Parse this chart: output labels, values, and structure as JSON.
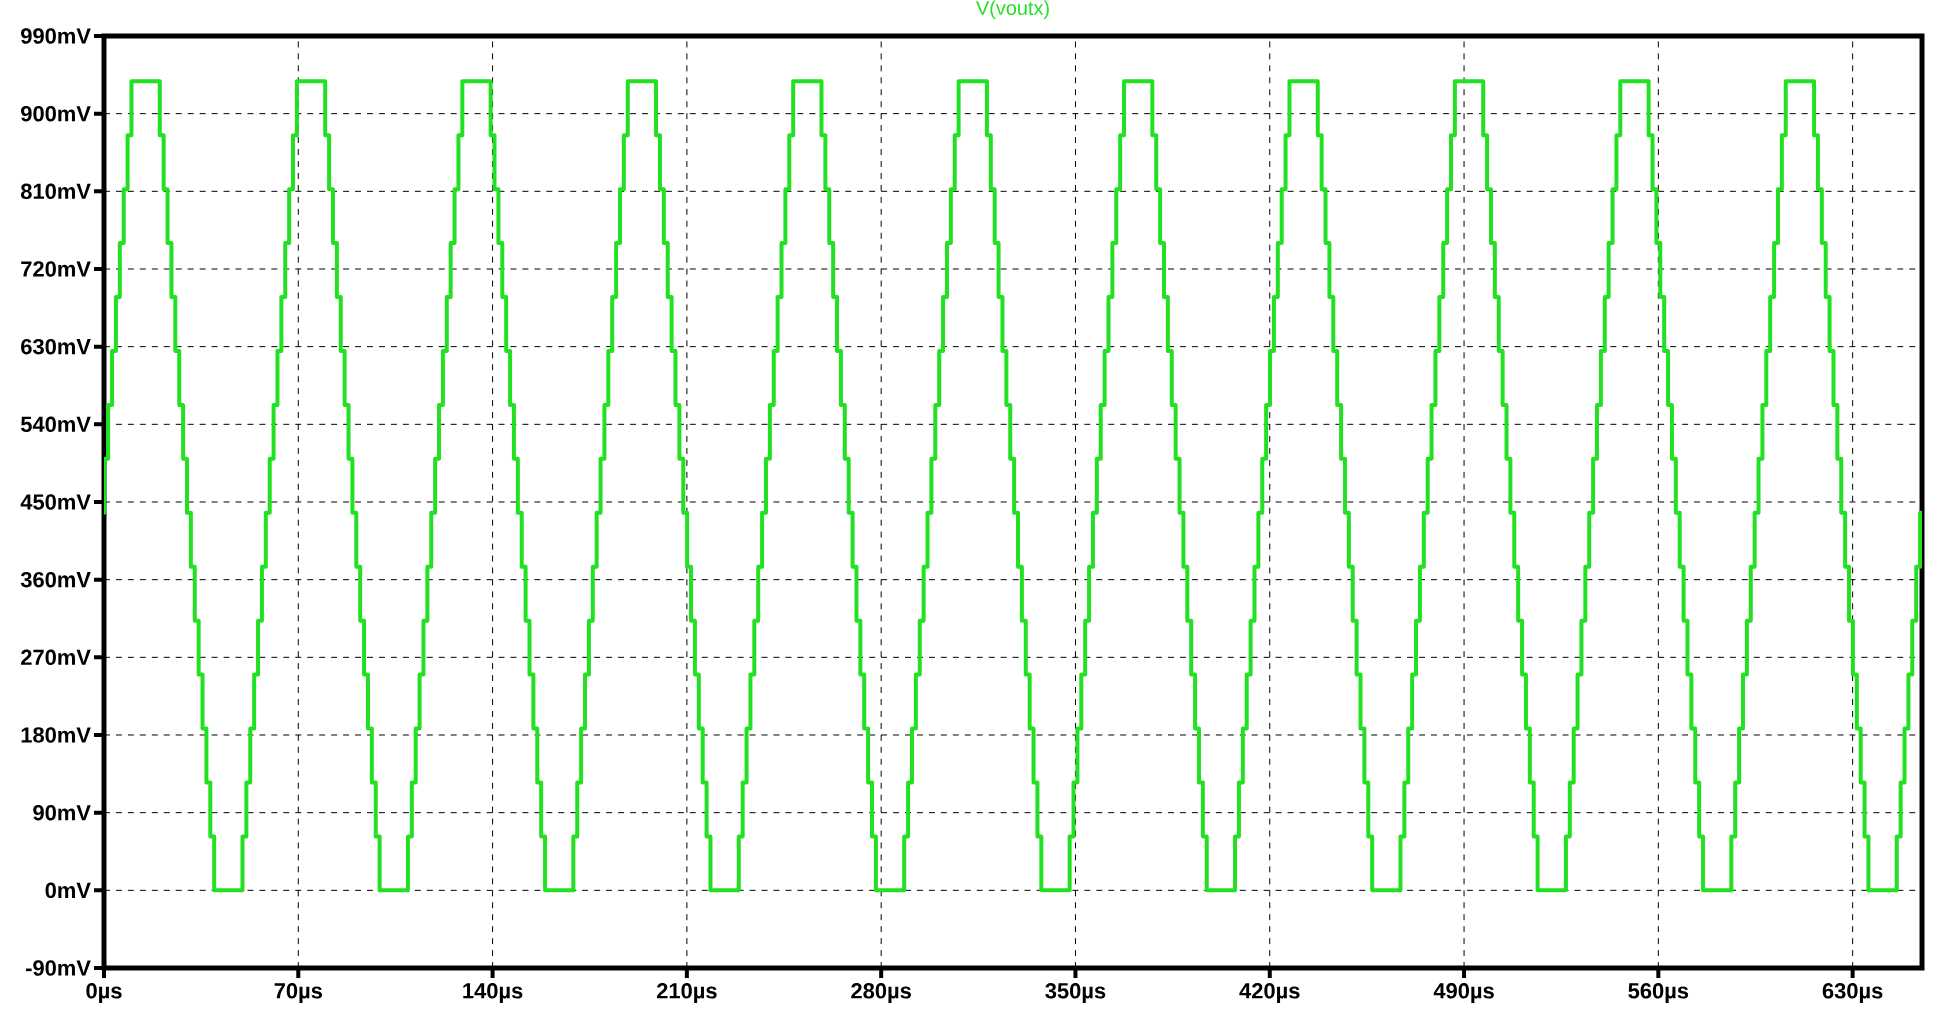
{
  "chart_data": {
    "type": "step",
    "title": "V(voutx)",
    "x": [
      0,
      0.1,
      1.5,
      2.9,
      4.3,
      5.7,
      7.1,
      8.5,
      9.9,
      20.1,
      21.5,
      22.9,
      24.3,
      25.7,
      27.1,
      28.5,
      29.9,
      31.3,
      32.7,
      34.1,
      35.5,
      36.9,
      38.3,
      39.7,
      49.9,
      51.3,
      52.7,
      54.1,
      55.5,
      56.9,
      58.3,
      59.7,
      61.1,
      62.5,
      63.9,
      65.3,
      66.7,
      68.1,
      69.5,
      79.7,
      81.1,
      82.5,
      83.9,
      85.3,
      86.7,
      88.1,
      89.5,
      90.9,
      92.3,
      93.7,
      95.1,
      96.5,
      97.9,
      99.3,
      109.5,
      110.9,
      112.3,
      113.7,
      115.1,
      116.5,
      117.9,
      119.3,
      120.7,
      122.1,
      123.5,
      124.9,
      126.3,
      127.7,
      129.1,
      139.3,
      140.7,
      142.1,
      143.5,
      144.9,
      146.3,
      147.7,
      149.1,
      150.5,
      151.9,
      153.3,
      154.7,
      156.1,
      157.5,
      158.9,
      169.1,
      170.5,
      171.9,
      173.3,
      174.7,
      176.1,
      177.5,
      178.9,
      180.3,
      181.7,
      183.1,
      184.5,
      185.9,
      187.3,
      188.7,
      198.9,
      200.3,
      201.7,
      203.1,
      204.5,
      205.9,
      207.3,
      208.7,
      210.1,
      211.5,
      212.9,
      214.3,
      215.7,
      217.1,
      218.5,
      228.7,
      230.1,
      231.5,
      232.9,
      234.3,
      235.7,
      237.1,
      238.5,
      239.9,
      241.3,
      242.7,
      244.1,
      245.5,
      246.9,
      248.3,
      258.5,
      259.9,
      261.3,
      262.7,
      264.1,
      265.5,
      266.9,
      268.3,
      269.7,
      271.1,
      272.5,
      273.9,
      275.3,
      276.7,
      278.1,
      288.3,
      289.7,
      291.1,
      292.5,
      293.9,
      295.3,
      296.7,
      298.1,
      299.5,
      300.9,
      302.3,
      303.7,
      305.1,
      306.5,
      307.9,
      318.1,
      319.5,
      320.9,
      322.3,
      323.7,
      325.1,
      326.5,
      327.9,
      329.3,
      330.7,
      332.1,
      333.5,
      334.9,
      336.3,
      337.7,
      347.9,
      349.3,
      350.7,
      352.1,
      353.5,
      354.9,
      356.3,
      357.7,
      359.1,
      360.5,
      361.9,
      363.3,
      364.7,
      366.1,
      367.5,
      377.7,
      379.1,
      380.5,
      381.9,
      383.3,
      384.7,
      386.1,
      387.5,
      388.9,
      390.3,
      391.7,
      393.1,
      394.5,
      395.9,
      397.3,
      407.5,
      408.9,
      410.3,
      411.7,
      413.1,
      414.5,
      415.9,
      417.3,
      418.7,
      420.1,
      421.5,
      422.9,
      424.3,
      425.7,
      427.1,
      437.3,
      438.7,
      440.1,
      441.5,
      442.9,
      444.3,
      445.7,
      447.1,
      448.5,
      449.9,
      451.3,
      452.7,
      454.1,
      455.5,
      456.9,
      467.1,
      468.5,
      469.9,
      471.3,
      472.7,
      474.1,
      475.5,
      476.9,
      478.3,
      479.7,
      481.1,
      482.5,
      483.9,
      485.3,
      486.7,
      496.9,
      498.3,
      499.7,
      501.1,
      502.5,
      503.9,
      505.3,
      506.7,
      508.1,
      509.5,
      510.9,
      512.3,
      513.7,
      515.1,
      516.5,
      526.7,
      528.1,
      529.5,
      530.9,
      532.3,
      533.7,
      535.1,
      536.5,
      537.9,
      539.3,
      540.7,
      542.1,
      543.5,
      544.9,
      546.3,
      556.5,
      557.9,
      559.3,
      560.7,
      562.1,
      563.5,
      564.9,
      566.3,
      567.7,
      569.1,
      570.5,
      571.9,
      573.3,
      574.7,
      576.1,
      586.3,
      587.7,
      589.1,
      590.5,
      591.9,
      593.3,
      594.7,
      596.1,
      597.5,
      598.9,
      600.3,
      601.7,
      603.1,
      604.5,
      605.9,
      616.1,
      617.5,
      618.9,
      620.3,
      621.7,
      623.1,
      624.5,
      625.9,
      627.3,
      628.7,
      630.1,
      631.5,
      632.9,
      634.3,
      635.7,
      645.9,
      647.3,
      648.7,
      650.1,
      651.5,
      652.9,
      654.3,
      655
    ],
    "series": [
      {
        "color": "#22e022",
        "values": [
          437.5,
          500,
          562.5,
          625,
          687.5,
          750,
          812.5,
          875,
          937.5,
          875,
          812.5,
          750,
          687.5,
          625,
          562.5,
          500,
          437.5,
          375,
          312.5,
          250,
          187.5,
          125,
          62.5,
          0,
          62.5,
          125,
          187.5,
          250,
          312.5,
          375,
          437.5,
          500,
          562.5,
          625,
          687.5,
          750,
          812.5,
          875,
          937.5,
          875,
          812.5,
          750,
          687.5,
          625,
          562.5,
          500,
          437.5,
          375,
          312.5,
          250,
          187.5,
          125,
          62.5,
          0,
          62.5,
          125,
          187.5,
          250,
          312.5,
          375,
          437.5,
          500,
          562.5,
          625,
          687.5,
          750,
          812.5,
          875,
          937.5,
          875,
          812.5,
          750,
          687.5,
          625,
          562.5,
          500,
          437.5,
          375,
          312.5,
          250,
          187.5,
          125,
          62.5,
          0,
          62.5,
          125,
          187.5,
          250,
          312.5,
          375,
          437.5,
          500,
          562.5,
          625,
          687.5,
          750,
          812.5,
          875,
          937.5,
          875,
          812.5,
          750,
          687.5,
          625,
          562.5,
          500,
          437.5,
          375,
          312.5,
          250,
          187.5,
          125,
          62.5,
          0,
          62.5,
          125,
          187.5,
          250,
          312.5,
          375,
          437.5,
          500,
          562.5,
          625,
          687.5,
          750,
          812.5,
          875,
          937.5,
          875,
          812.5,
          750,
          687.5,
          625,
          562.5,
          500,
          437.5,
          375,
          312.5,
          250,
          187.5,
          125,
          62.5,
          0,
          62.5,
          125,
          187.5,
          250,
          312.5,
          375,
          437.5,
          500,
          562.5,
          625,
          687.5,
          750,
          812.5,
          875,
          937.5,
          875,
          812.5,
          750,
          687.5,
          625,
          562.5,
          500,
          437.5,
          375,
          312.5,
          250,
          187.5,
          125,
          62.5,
          0,
          62.5,
          125,
          187.5,
          250,
          312.5,
          375,
          437.5,
          500,
          562.5,
          625,
          687.5,
          750,
          812.5,
          875,
          937.5,
          875,
          812.5,
          750,
          687.5,
          625,
          562.5,
          500,
          437.5,
          375,
          312.5,
          250,
          187.5,
          125,
          62.5,
          0,
          62.5,
          125,
          187.5,
          250,
          312.5,
          375,
          437.5,
          500,
          562.5,
          625,
          687.5,
          750,
          812.5,
          875,
          937.5,
          875,
          812.5,
          750,
          687.5,
          625,
          562.5,
          500,
          437.5,
          375,
          312.5,
          250,
          187.5,
          125,
          62.5,
          0,
          62.5,
          125,
          187.5,
          250,
          312.5,
          375,
          437.5,
          500,
          562.5,
          625,
          687.5,
          750,
          812.5,
          875,
          937.5,
          875,
          812.5,
          750,
          687.5,
          625,
          562.5,
          500,
          437.5,
          375,
          312.5,
          250,
          187.5,
          125,
          62.5,
          0,
          62.5,
          125,
          187.5,
          250,
          312.5,
          375,
          437.5,
          500,
          562.5,
          625,
          687.5,
          750,
          812.5,
          875,
          937.5,
          875,
          812.5,
          750,
          687.5,
          625,
          562.5,
          500,
          437.5,
          375,
          312.5,
          250,
          187.5,
          125,
          62.5,
          0,
          62.5,
          125,
          187.5,
          250,
          312.5,
          375,
          437.5,
          500,
          562.5,
          625,
          687.5,
          750,
          812.5,
          875,
          937.5,
          875,
          812.5,
          750,
          687.5,
          625,
          562.5,
          500,
          437.5,
          375,
          312.5,
          250,
          187.5,
          125,
          62.5,
          0,
          62.5,
          125,
          187.5,
          250,
          312.5,
          375,
          437.5,
          437.5
        ]
      }
    ],
    "xlim": [
      0,
      655
    ],
    "ylim": [
      -90,
      990
    ],
    "xticks": [
      {
        "value": 0,
        "label": "0µs"
      },
      {
        "value": 70,
        "label": "70µs"
      },
      {
        "value": 140,
        "label": "140µs"
      },
      {
        "value": 210,
        "label": "210µs"
      },
      {
        "value": 280,
        "label": "280µs"
      },
      {
        "value": 350,
        "label": "350µs"
      },
      {
        "value": 420,
        "label": "420µs"
      },
      {
        "value": 490,
        "label": "490µs"
      },
      {
        "value": 560,
        "label": "560µs"
      },
      {
        "value": 630,
        "label": "630µs"
      }
    ],
    "yticks": [
      {
        "value": -90,
        "label": "-90mV"
      },
      {
        "value": 0,
        "label": "0mV"
      },
      {
        "value": 90,
        "label": "90mV"
      },
      {
        "value": 180,
        "label": "180mV"
      },
      {
        "value": 270,
        "label": "270mV"
      },
      {
        "value": 360,
        "label": "360mV"
      },
      {
        "value": 450,
        "label": "450mV"
      },
      {
        "value": 540,
        "label": "540mV"
      },
      {
        "value": 630,
        "label": "630mV"
      },
      {
        "value": 720,
        "label": "720mV"
      },
      {
        "value": 810,
        "label": "810mV"
      },
      {
        "value": 900,
        "label": "900mV"
      },
      {
        "value": 990,
        "label": "990mV"
      }
    ],
    "grid": true
  }
}
